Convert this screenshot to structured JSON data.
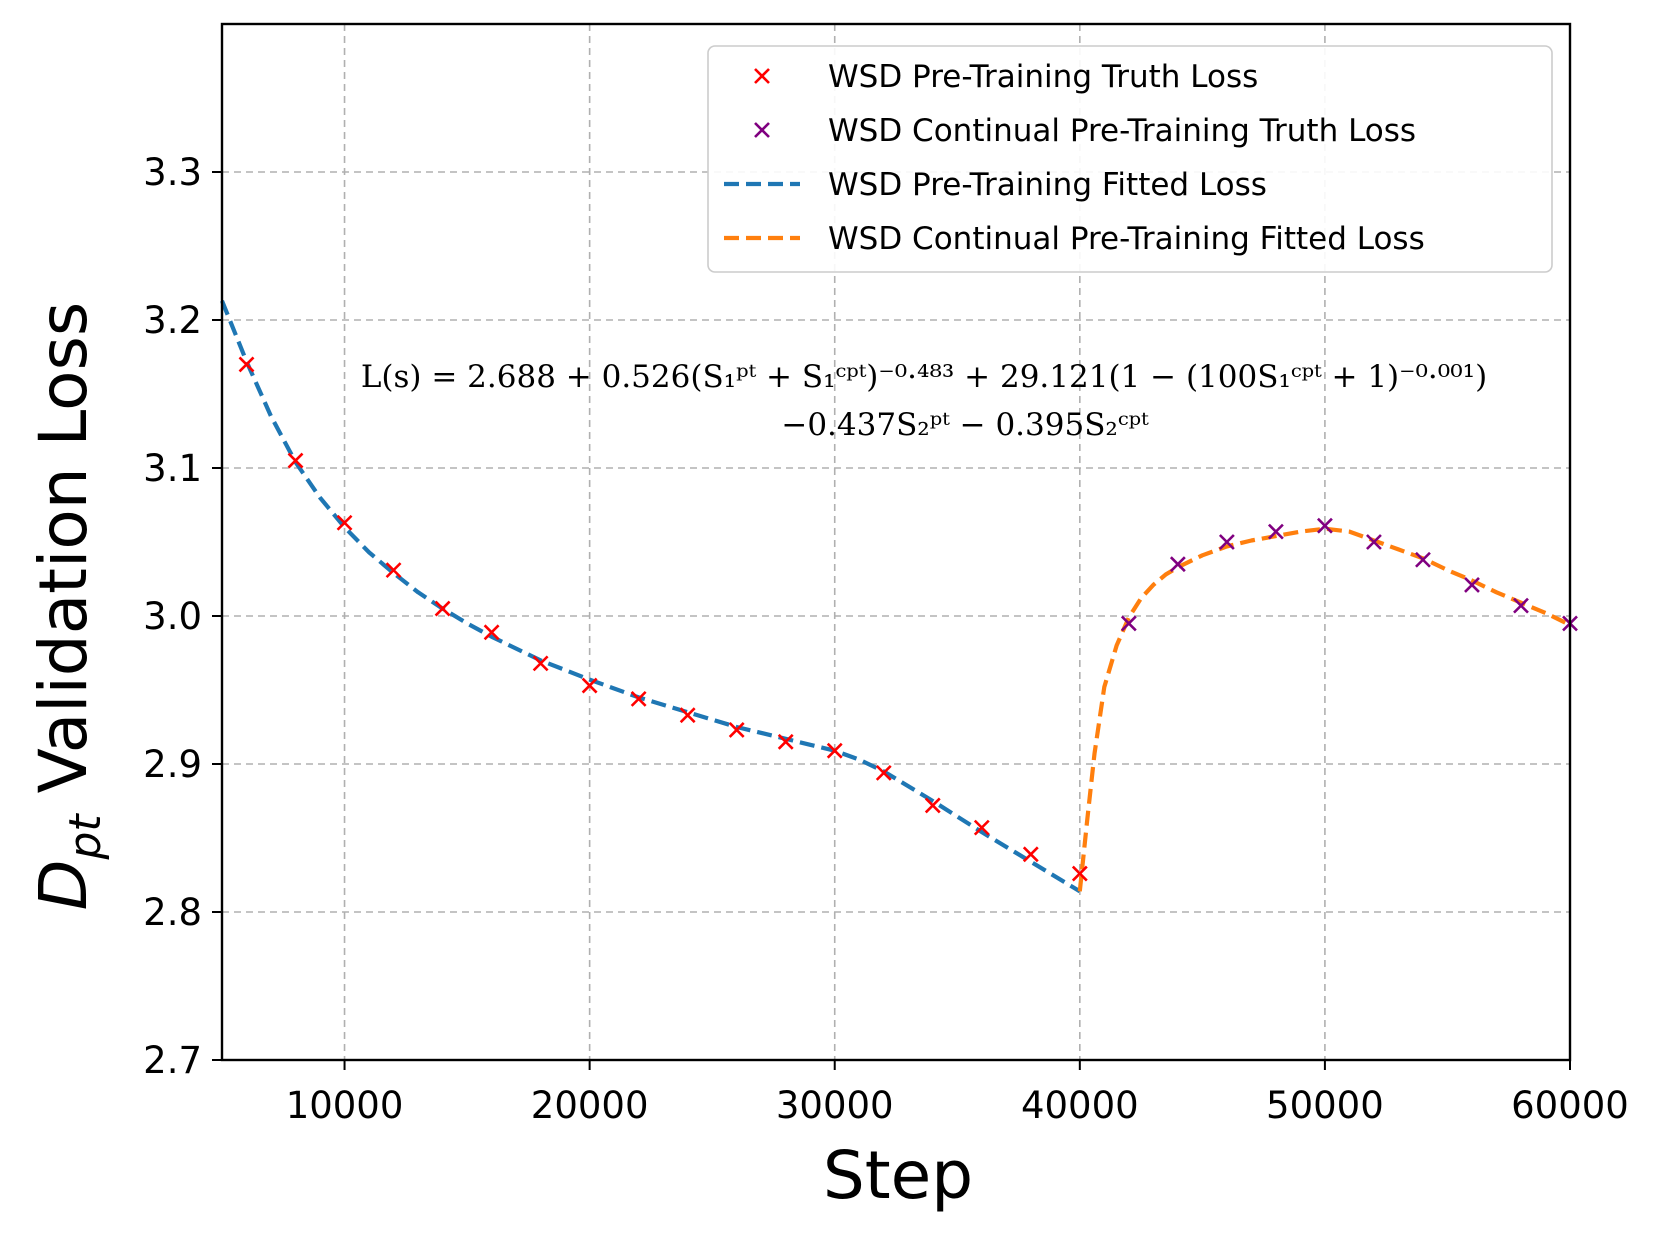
{
  "chart_data": {
    "type": "line",
    "title": "",
    "xlabel": "Step",
    "ylabel": {
      "base": "D",
      "sub": "pt",
      "rest": " Validation Loss"
    },
    "xlim": [
      5000,
      60000
    ],
    "ylim": [
      2.7,
      3.4
    ],
    "xticks": [
      10000,
      20000,
      30000,
      40000,
      50000,
      60000
    ],
    "yticks": [
      2.7,
      2.8,
      2.9,
      3.0,
      3.1,
      3.2,
      3.3
    ],
    "grid": true,
    "legend_position": "top-right",
    "annotation": {
      "line1": "L(s) = 2.688 + 0.526(S₁ᵖᵗ + S₁ᶜᵖᵗ)⁻⁰·⁴⁸³ + 29.121(1 − (100S₁ᶜᵖᵗ + 1)⁻⁰·⁰⁰¹)",
      "line2": "−0.437S₂ᵖᵗ − 0.395S₂ᶜᵖᵗ"
    },
    "series": [
      {
        "name": "WSD Pre-Training Truth Loss",
        "style": "marker-x",
        "color": "#ff0000",
        "x": [
          6000,
          8000,
          10000,
          12000,
          14000,
          16000,
          18000,
          20000,
          22000,
          24000,
          26000,
          28000,
          30000,
          32000,
          34000,
          36000,
          38000,
          40000
        ],
        "values": [
          3.17,
          3.105,
          3.063,
          3.031,
          3.005,
          2.989,
          2.968,
          2.953,
          2.944,
          2.933,
          2.923,
          2.915,
          2.909,
          2.894,
          2.872,
          2.857,
          2.839,
          2.826
        ]
      },
      {
        "name": "WSD Continual Pre-Training Truth Loss",
        "style": "marker-x",
        "color": "#800080",
        "x": [
          42000,
          44000,
          46000,
          48000,
          50000,
          52000,
          54000,
          56000,
          58000,
          60000
        ],
        "values": [
          2.995,
          3.035,
          3.05,
          3.057,
          3.061,
          3.05,
          3.038,
          3.021,
          3.007,
          2.995
        ]
      },
      {
        "name": "WSD Pre-Training Fitted Loss",
        "style": "dashed-line",
        "color": "#1f77b4",
        "x": [
          5000,
          6000,
          7000,
          8000,
          9000,
          10000,
          11000,
          12000,
          13000,
          14000,
          15000,
          16000,
          18000,
          20000,
          22000,
          24000,
          26000,
          28000,
          29000,
          30000,
          31000,
          32000,
          34000,
          36000,
          38000,
          40000
        ],
        "values": [
          3.213,
          3.172,
          3.135,
          3.104,
          3.08,
          3.06,
          3.043,
          3.029,
          3.016,
          3.005,
          2.995,
          2.986,
          2.97,
          2.957,
          2.945,
          2.935,
          2.925,
          2.917,
          2.913,
          2.909,
          2.903,
          2.895,
          2.875,
          2.854,
          2.834,
          2.814
        ]
      },
      {
        "name": "WSD Continual Pre-Training Fitted Loss",
        "style": "dashed-line",
        "color": "#ff7f0e",
        "x": [
          40000,
          40300,
          40600,
          41000,
          41500,
          42000,
          42500,
          43000,
          43500,
          44000,
          45000,
          46000,
          47000,
          48000,
          49000,
          50000,
          51000,
          52000,
          53000,
          54000,
          55000,
          56000,
          57000,
          58000,
          59000,
          60000
        ],
        "values": [
          2.814,
          2.862,
          2.907,
          2.952,
          2.98,
          2.999,
          3.012,
          3.021,
          3.028,
          3.033,
          3.041,
          3.047,
          3.051,
          3.054,
          3.057,
          3.059,
          3.057,
          3.051,
          3.045,
          3.039,
          3.031,
          3.024,
          3.016,
          3.009,
          3.002,
          2.994
        ]
      }
    ]
  }
}
